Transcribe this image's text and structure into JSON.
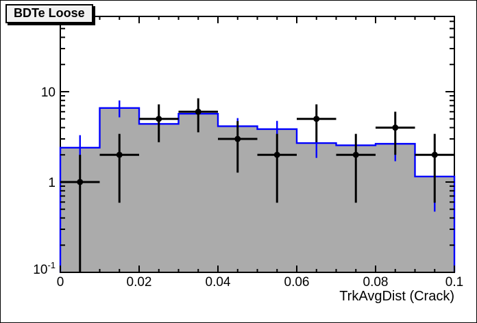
{
  "window": {
    "background": "#ffffff",
    "border_color": "#000000"
  },
  "title_box": {
    "text": "BDTe Loose",
    "background": "#f2f2f2",
    "border_color": "#000000",
    "shadow_color": "#000000",
    "text_color": "#000000"
  },
  "x_axis": {
    "title": "TrkAvgDist (Crack)",
    "min": 0,
    "max": 0.1,
    "major_ticks": [
      0,
      0.02,
      0.04,
      0.06,
      0.08,
      0.1
    ],
    "major_tick_labels": [
      "0",
      "0.02",
      "0.04",
      "0.06",
      "0.08",
      "0.1"
    ],
    "minor_tick_step": 0.005
  },
  "y_axis": {
    "scale": "log",
    "min": 0.1,
    "max": 68.1,
    "major_ticks": [
      {
        "value": 0.1,
        "label_base": "10",
        "label_sup": "-1"
      },
      {
        "value": 1,
        "label_base": "1",
        "label_sup": ""
      },
      {
        "value": 10,
        "label_base": "10",
        "label_sup": ""
      }
    ]
  },
  "chart_data": {
    "type": "bar",
    "subtype": "histogram-with-data-points",
    "title": "BDTe Loose",
    "xlabel": "TrkAvgDist (Crack)",
    "ylabel": "",
    "xlim": [
      0,
      0.1
    ],
    "ylim": [
      0.1,
      68.1
    ],
    "yscale": "log",
    "grid": false,
    "legend": "none",
    "bin_edges": [
      0,
      0.01,
      0.02,
      0.03,
      0.04,
      0.05,
      0.06,
      0.07,
      0.08,
      0.09,
      0.1
    ],
    "series": [
      {
        "name": "template-histogram",
        "style": "filled-steps-with-errors",
        "fill_color": "#ababab",
        "line_color": "#0000ff",
        "values": [
          2.4,
          6.6,
          4.4,
          5.7,
          4.15,
          3.85,
          2.7,
          2.55,
          2.65,
          1.15
        ],
        "errors": [
          0.9,
          1.4,
          1.1,
          1.2,
          0.95,
          0.9,
          0.85,
          0.8,
          0.95,
          0.68
        ]
      },
      {
        "name": "data-points",
        "style": "points-with-errors",
        "color": "#000000",
        "x": [
          0.005,
          0.015,
          0.025,
          0.035,
          0.045,
          0.055,
          0.065,
          0.075,
          0.085,
          0.095
        ],
        "y": [
          1,
          2,
          5,
          6,
          3,
          2,
          5,
          2,
          4,
          2
        ],
        "xerr": 0.005,
        "yerr": [
          1,
          1.41,
          2.24,
          2.45,
          1.73,
          1.41,
          2.24,
          1.41,
          2,
          1.41
        ]
      }
    ]
  }
}
